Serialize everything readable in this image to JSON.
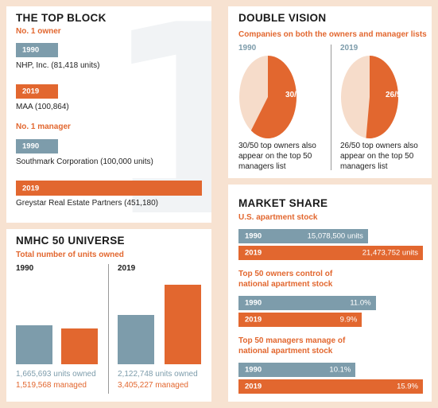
{
  "colors": {
    "blue": "#7d9cab",
    "orange": "#e2672f",
    "peach": "#f7e2d1",
    "light_peach": "#f6dcca"
  },
  "top_block": {
    "title": "THE TOP BLOCK",
    "big_number": "1",
    "owner_heading": "No. 1 owner",
    "owner_1990_year": "1990",
    "owner_1990_name": "NHP, Inc. (81,418 units)",
    "owner_2019_year": "2019",
    "owner_2019_name": "MAA (100,864)",
    "manager_heading": "No. 1 manager",
    "manager_1990_year": "1990",
    "manager_1990_name": "Southmark Corporation (100,000 units)",
    "manager_2019_year": "2019",
    "manager_2019_name": "Greystar Real Estate Partners (451,180)"
  },
  "double_vision": {
    "title": "DOUBLE VISION",
    "subtitle": "Companies on both the owners and manager lists",
    "left_year": "1990",
    "left_pie_label": "30/50",
    "left_caption_1": "30/50 top owners also",
    "left_caption_2": "appear on the top 50",
    "left_caption_3": "managers list",
    "right_year": "2019",
    "right_pie_label": "26/50",
    "right_caption_1": "26/50 top owners also",
    "right_caption_2": "appear on the top 50",
    "right_caption_3": "managers list"
  },
  "universe": {
    "title": "NMHC 50 UNIVERSE",
    "subtitle": "Total number of units owned",
    "left_year": "1990",
    "right_year": "2019",
    "left_owned": "1,665,693 units owned",
    "left_managed": "1,519,568 managed",
    "right_owned": "2,122,748 units owned",
    "right_managed": "3,405,227 managed"
  },
  "market_share": {
    "title": "MARKET SHARE",
    "stock_heading": "U.S. apartment stock",
    "stock_1990_year": "1990",
    "stock_1990_value": "15,078,500 units",
    "stock_2019_year": "2019",
    "stock_2019_value": "21,473,752 units",
    "owners_heading_1": "Top 50 owners control of",
    "owners_heading_2": "national apartment stock",
    "owners_1990_year": "1990",
    "owners_1990_value": "11.0%",
    "owners_2019_year": "2019",
    "owners_2019_value": "9.9%",
    "managers_heading_1": "Top 50 managers manage of",
    "managers_heading_2": "national apartment stock",
    "managers_1990_year": "1990",
    "managers_1990_value": "10.1%",
    "managers_2019_year": "2019",
    "managers_2019_value": "15.9%"
  },
  "chart_data": [
    {
      "type": "pie",
      "title": "DOUBLE VISION",
      "series": [
        {
          "name": "1990",
          "values": [
            30,
            20
          ]
        },
        {
          "name": "2019",
          "values": [
            26,
            24
          ]
        }
      ]
    },
    {
      "type": "bar",
      "title": "NMHC 50 UNIVERSE",
      "categories": [
        "1990",
        "2019"
      ],
      "series": [
        {
          "values": [
            1665693,
            2122748
          ]
        },
        {
          "values": [
            1519568,
            3405227
          ]
        }
      ]
    },
    {
      "type": "bar",
      "title": "MARKET SHARE",
      "categories": [
        "1990",
        "2019"
      ],
      "series": [
        {
          "name": "U.S. apartment stock",
          "values": [
            15078500,
            21473752
          ]
        },
        {
          "name": "Top 50 owners control of national apartment stock",
          "values": [
            11.0,
            9.9
          ]
        },
        {
          "name": "Top 50 managers manage of national apartment stock",
          "values": [
            10.1,
            15.9
          ]
        }
      ]
    }
  ]
}
